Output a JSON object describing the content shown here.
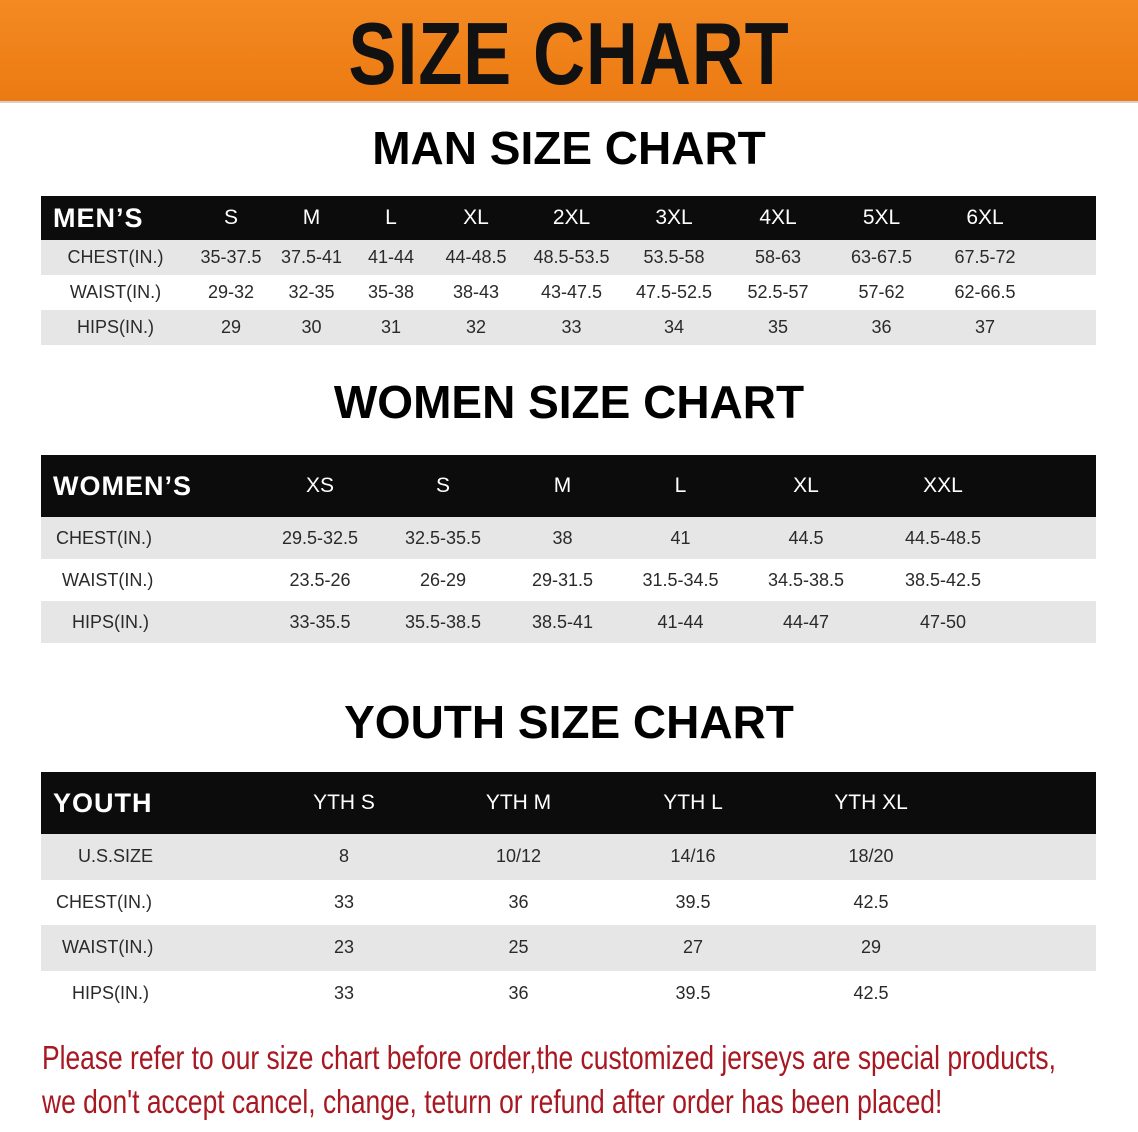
{
  "banner": {
    "title": "SIZE CHART",
    "color": "#f0821a"
  },
  "men": {
    "title": "MAN SIZE CHART",
    "header": [
      "MEN’S",
      "S",
      "M",
      "L",
      "XL",
      "2XL",
      "3XL",
      "4XL",
      "5XL",
      "6XL",
      ""
    ],
    "rows": [
      [
        "CHEST(IN.)",
        "35-37.5",
        "37.5-41",
        "41-44",
        "44-48.5",
        "48.5-53.5",
        "53.5-58",
        "58-63",
        "63-67.5",
        "67.5-72",
        ""
      ],
      [
        "WAIST(IN.)",
        "29-32",
        "32-35",
        "35-38",
        "38-43",
        "43-47.5",
        "47.5-52.5",
        "52.5-57",
        "57-62",
        "62-66.5",
        ""
      ],
      [
        "HIPS(IN.)",
        "29",
        "30",
        "31",
        "32",
        "33",
        "34",
        "35",
        "36",
        "37",
        ""
      ]
    ]
  },
  "women": {
    "title": "WOMEN SIZE CHART",
    "header": [
      "WOMEN’S",
      "XS",
      "S",
      "M",
      "L",
      "XL",
      "XXL",
      ""
    ],
    "rows": [
      [
        "CHEST(IN.)",
        "29.5-32.5",
        "32.5-35.5",
        "38",
        "41",
        "44.5",
        "44.5-48.5",
        ""
      ],
      [
        "WAIST(IN.)",
        "23.5-26",
        "26-29",
        "29-31.5",
        "31.5-34.5",
        "34.5-38.5",
        "38.5-42.5",
        ""
      ],
      [
        "HIPS(IN.)",
        "33-35.5",
        "35.5-38.5",
        "38.5-41",
        "41-44",
        "44-47",
        "47-50",
        ""
      ]
    ]
  },
  "youth": {
    "title": "YOUTH SIZE CHART",
    "header": [
      "YOUTH",
      "YTH S",
      "YTH M",
      "YTH L",
      "YTH XL",
      ""
    ],
    "rows": [
      [
        "U.S.SIZE",
        "8",
        "10/12",
        "14/16",
        "18/20",
        ""
      ],
      [
        "CHEST(IN.)",
        "33",
        "36",
        "39.5",
        "42.5",
        ""
      ],
      [
        "WAIST(IN.)",
        "23",
        "25",
        "27",
        "29",
        ""
      ],
      [
        "HIPS(IN.)",
        "33",
        "36",
        "39.5",
        "42.5",
        ""
      ]
    ]
  },
  "notice": {
    "line1": "Please refer to our size chart before order,the customized jerseys are special products,",
    "line2": "we don't accept cancel, change, teturn or refund after order has been placed!",
    "color": "#a81822"
  }
}
